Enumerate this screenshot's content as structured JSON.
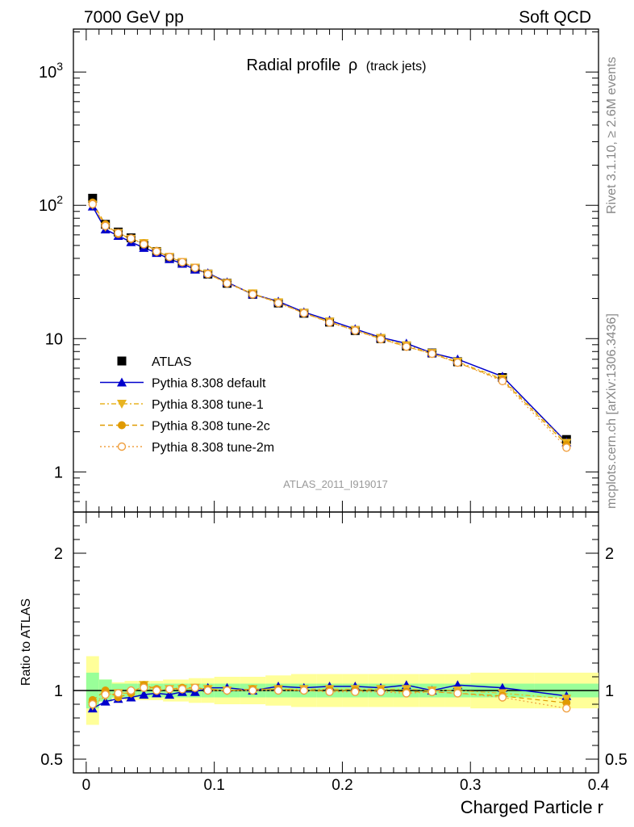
{
  "header": {
    "left": "7000 GeV pp",
    "right": "Soft QCD"
  },
  "side_labels": {
    "rivet": "Rivet 3.1.10, ≥ 2.6M events",
    "mcplots": "mcplots.cern.ch [arXiv:1306.3436]"
  },
  "chart_data": {
    "type": "line",
    "title": "Radial profile",
    "title_symbol": "ρ",
    "title_suffix": "(track jets)",
    "analysis_tag": "ATLAS_2011_I919017",
    "xlabel": "Charged Particle r",
    "ylabel_ratio": "Ratio to ATLAS",
    "xlim": [
      -0.01,
      0.4
    ],
    "xticks": [
      "0",
      "0.1",
      "0.2",
      "0.3",
      "0.4"
    ],
    "xtick_values": [
      0,
      0.1,
      0.2,
      0.3,
      0.4
    ],
    "main_y_scale": "log",
    "main_ylim": [
      0.5,
      2100
    ],
    "main_yticks": [
      "1",
      "10",
      "10²",
      "10³"
    ],
    "main_ytick_values": [
      1,
      10,
      100,
      1000
    ],
    "ratio_ylim": [
      0.4,
      2.3
    ],
    "ratio_yticks": [
      "0.5",
      "1",
      "2"
    ],
    "ratio_ytick_values": [
      0.5,
      1,
      2
    ],
    "legend_position": "middle-left",
    "x": [
      0.005,
      0.015,
      0.025,
      0.035,
      0.045,
      0.055,
      0.065,
      0.075,
      0.085,
      0.095,
      0.11,
      0.13,
      0.15,
      0.17,
      0.19,
      0.21,
      0.23,
      0.25,
      0.27,
      0.29,
      0.325,
      0.375
    ],
    "bin_edges": [
      0,
      0.01,
      0.02,
      0.03,
      0.04,
      0.05,
      0.06,
      0.07,
      0.08,
      0.09,
      0.1,
      0.12,
      0.14,
      0.16,
      0.18,
      0.2,
      0.22,
      0.24,
      0.26,
      0.28,
      0.3,
      0.35,
      0.4
    ],
    "data_series": {
      "name": "ATLAS",
      "color": "#000000",
      "values": [
        113,
        72,
        63,
        57,
        50,
        45,
        40.5,
        37,
        33.5,
        30.5,
        26,
        21.5,
        18.5,
        15.5,
        13.3,
        11.5,
        10,
        8.8,
        7.8,
        6.7,
        5.1,
        1.75
      ],
      "band_inner": [
        0.13,
        0.08,
        0.05,
        0.05,
        0.05,
        0.05,
        0.05,
        0.05,
        0.05,
        0.05,
        0.05,
        0.05,
        0.05,
        0.05,
        0.05,
        0.05,
        0.05,
        0.05,
        0.05,
        0.05,
        0.05,
        0.05
      ],
      "band_outer": [
        0.25,
        0.08,
        0.06,
        0.07,
        0.07,
        0.07,
        0.08,
        0.08,
        0.09,
        0.09,
        0.1,
        0.1,
        0.11,
        0.12,
        0.12,
        0.12,
        0.12,
        0.12,
        0.12,
        0.12,
        0.13,
        0.13
      ]
    },
    "series": [
      {
        "name": "Pythia 8.308 default",
        "color": "#0000cc",
        "style": "solid",
        "marker": "triangle",
        "values": [
          98,
          66,
          59,
          53,
          48,
          44,
          39.5,
          36.5,
          33,
          31,
          26.5,
          21.5,
          19,
          15.8,
          13.7,
          11.8,
          10.2,
          9.2,
          7.8,
          7,
          5.2,
          1.67
        ],
        "ratio": [
          0.87,
          0.92,
          0.94,
          0.95,
          0.97,
          0.98,
          0.97,
          0.99,
          0.99,
          1.02,
          1.02,
          1.0,
          1.03,
          1.02,
          1.03,
          1.03,
          1.02,
          1.04,
          1.0,
          1.04,
          1.02,
          0.96
        ]
      },
      {
        "name": "Pythia 8.308 tune-1",
        "color": "#e8b422",
        "style": "dashdot",
        "marker": "triangle-down",
        "values": [
          101,
          69,
          62,
          56,
          52,
          45,
          41,
          37.5,
          34,
          30.7,
          26,
          21.8,
          18.7,
          15.6,
          13.4,
          11.6,
          10.1,
          8.9,
          7.8,
          6.7,
          5.0,
          1.65
        ],
        "ratio": [
          0.89,
          0.96,
          0.98,
          0.98,
          1.04,
          1.0,
          1.01,
          1.01,
          1.02,
          1.01,
          1.0,
          1.01,
          1.01,
          1.01,
          1.01,
          1.01,
          1.01,
          1.01,
          1.0,
          1.0,
          0.98,
          0.94
        ]
      },
      {
        "name": "Pythia 8.308 tune-2c",
        "color": "#e09a00",
        "style": "dashed",
        "marker": "circle",
        "values": [
          105,
          72,
          61,
          56,
          52,
          45.5,
          41,
          37.5,
          34,
          30.7,
          26.3,
          21.7,
          18.6,
          15.5,
          13.3,
          11.5,
          10,
          8.7,
          7.7,
          6.6,
          4.9,
          1.6
        ],
        "ratio": [
          0.93,
          1.0,
          0.95,
          0.98,
          1.04,
          1.01,
          1.01,
          1.02,
          1.02,
          1.01,
          1.0,
          1.01,
          1.01,
          1.0,
          1.0,
          1.0,
          1.0,
          0.99,
          0.99,
          0.98,
          0.96,
          0.91
        ]
      },
      {
        "name": "Pythia 8.308 tune-2m",
        "color": "#f0a040",
        "style": "dotted",
        "marker": "open-circle",
        "values": [
          102,
          70,
          62,
          56.5,
          51,
          45,
          41,
          37.5,
          34,
          30.5,
          26,
          21.5,
          18.5,
          15.5,
          13.2,
          11.5,
          9.9,
          8.7,
          7.7,
          6.6,
          4.8,
          1.52
        ],
        "ratio": [
          0.9,
          0.97,
          0.98,
          1.0,
          1.02,
          1.0,
          1.01,
          1.01,
          1.02,
          1.0,
          1.0,
          1.0,
          1.0,
          1.0,
          0.99,
          0.99,
          0.99,
          0.98,
          0.99,
          0.98,
          0.95,
          0.87
        ]
      }
    ]
  }
}
